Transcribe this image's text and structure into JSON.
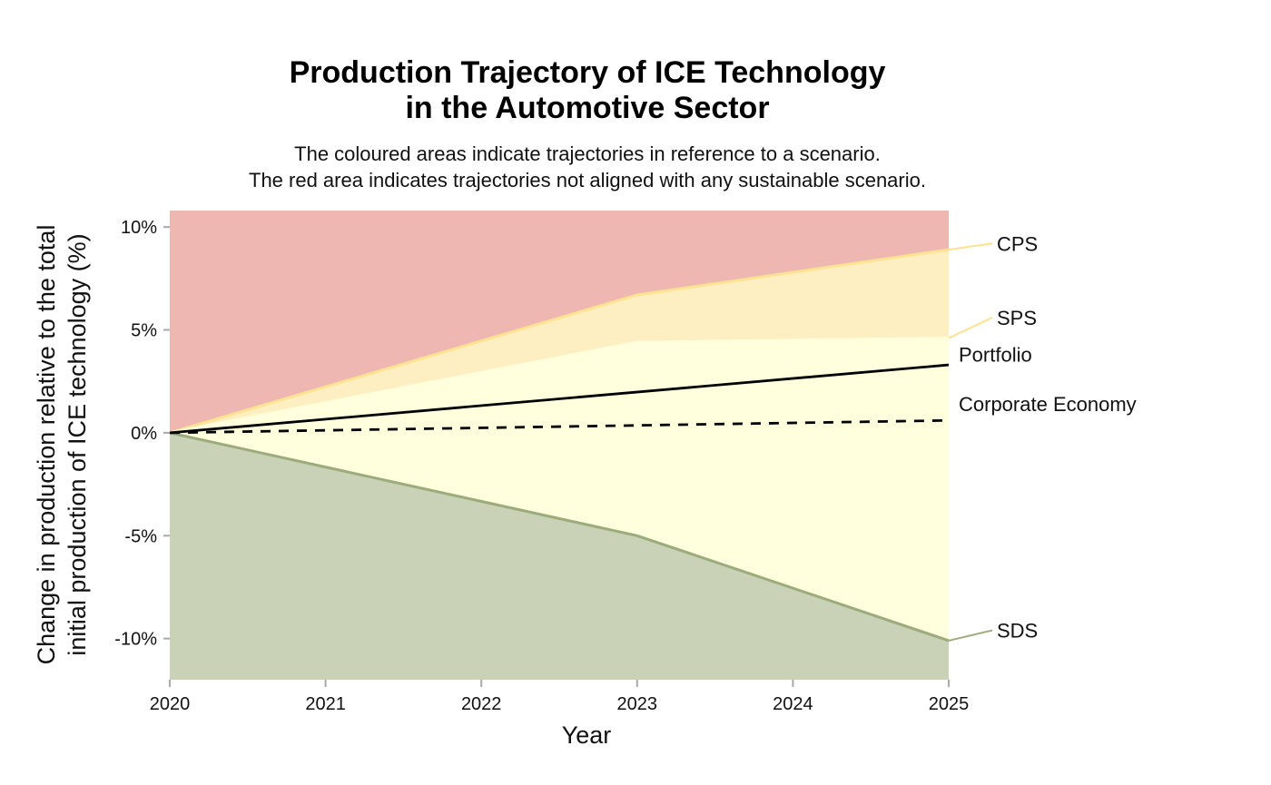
{
  "chart_data": {
    "type": "area",
    "title": [
      "Production Trajectory of ICE Technology",
      "in the Automotive Sector"
    ],
    "subtitle": [
      "The coloured areas indicate trajectories in reference to a scenario.",
      "The red area indicates trajectories not aligned with any sustainable scenario."
    ],
    "xlabel": "Year",
    "ylabel": [
      "Change in production relative to the total",
      "initial production of ICE technology (%)"
    ],
    "xlim": [
      2020,
      2025
    ],
    "ylim": [
      -12,
      10.8
    ],
    "x_ticks": [
      2020,
      2021,
      2022,
      2023,
      2024,
      2025
    ],
    "y_ticks": [
      {
        "value": 10,
        "label": "10%"
      },
      {
        "value": 5,
        "label": "5%"
      },
      {
        "value": 0,
        "label": "0%"
      },
      {
        "value": -5,
        "label": "-5%"
      },
      {
        "value": -10,
        "label": "-10%"
      }
    ],
    "x": [
      2020,
      2023,
      2025
    ],
    "scenarios": [
      {
        "name": "CPS",
        "values": [
          0,
          6.7,
          8.9
        ],
        "color": "#FDE291"
      },
      {
        "name": "SPS",
        "values": [
          0,
          4.4,
          4.6
        ],
        "color": "#FFFFCC"
      },
      {
        "name": "SDS",
        "values": [
          0,
          -5.0,
          -10.1
        ],
        "color": "#9CAB7C"
      }
    ],
    "bands": [
      {
        "id": "not-aligned",
        "color": "#E07B73",
        "opacity": 0.55
      },
      {
        "id": "cps",
        "color": "#FDE291",
        "opacity": 0.55
      },
      {
        "id": "sps",
        "color": "#FFFFDD",
        "opacity": 1
      },
      {
        "id": "sds",
        "color": "#C9D2B6",
        "opacity": 1
      }
    ],
    "series": [
      {
        "name": "Portfolio",
        "x": [
          2020,
          2025
        ],
        "values": [
          0,
          3.3
        ],
        "style": "solid",
        "color": "#000000"
      },
      {
        "name": "Corporate Economy",
        "x": [
          2020,
          2025
        ],
        "values": [
          0,
          0.6
        ],
        "style": "dashed",
        "color": "#000000"
      }
    ],
    "grid": false
  }
}
